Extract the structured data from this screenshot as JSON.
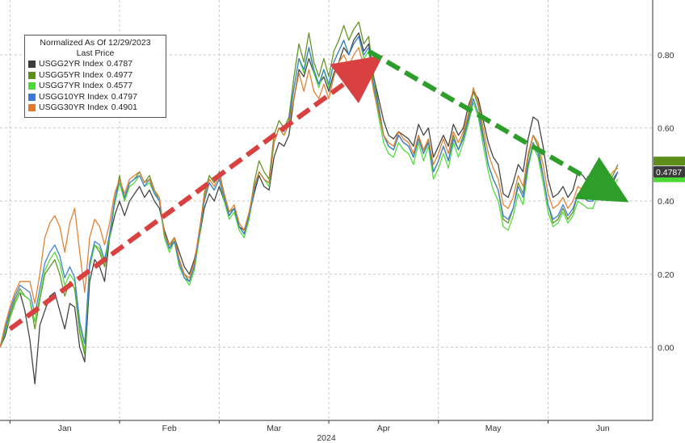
{
  "chart_data": {
    "type": "line",
    "legend": {
      "title_line1": "Normalized As Of 12/29/2023",
      "title_line2": "Last Price",
      "placement": "top-left"
    },
    "x_axis": {
      "tick_labels": [
        "Jan",
        "Feb",
        "Mar",
        "Apr",
        "May",
        "Jun"
      ],
      "year_label": "2024"
    },
    "y_axis": {
      "side": "right",
      "ylim": [
        -0.2,
        0.95
      ],
      "ticks": [
        0.0,
        0.2,
        0.4,
        0.6,
        0.8
      ],
      "tick_labels": [
        "0.00",
        "0.20",
        "0.40",
        "0.60",
        "0.80"
      ]
    },
    "grid": "dashed",
    "last_price_label": "0.4787",
    "x": [
      0,
      1,
      2,
      3,
      4,
      5,
      6,
      7,
      8,
      9,
      10,
      11,
      12,
      13,
      14,
      15,
      16,
      17,
      18,
      19,
      20,
      21,
      22,
      23,
      24,
      25,
      26,
      27,
      28,
      29,
      30,
      31,
      32,
      33,
      34,
      35,
      36,
      37,
      38,
      39,
      40,
      41,
      42,
      43,
      44,
      45,
      46,
      47,
      48,
      49,
      50,
      51,
      52,
      53,
      54,
      55,
      56,
      57,
      58,
      59,
      60,
      61,
      62,
      63,
      64,
      65,
      66,
      67,
      68,
      69,
      70,
      71,
      72,
      73,
      74,
      75,
      76,
      77,
      78,
      79,
      80,
      81,
      82,
      83,
      84,
      85,
      86,
      87,
      88,
      89,
      90,
      91,
      92,
      93,
      94,
      95,
      96,
      97,
      98,
      99,
      100,
      101,
      102,
      103,
      104,
      105,
      106,
      107,
      108,
      109,
      110,
      111,
      112,
      113,
      114,
      115,
      116,
      117,
      118,
      119,
      120,
      121,
      122,
      123,
      124
    ],
    "series": [
      {
        "name": "USGG2YR Index",
        "last": "0.4787",
        "color": "#3b3b3b",
        "values": [
          0.0,
          0.03,
          0.08,
          0.12,
          0.15,
          0.1,
          0.02,
          -0.1,
          0.06,
          0.1,
          0.14,
          0.15,
          0.1,
          0.05,
          0.12,
          0.11,
          0.0,
          -0.04,
          0.18,
          0.24,
          0.22,
          0.18,
          0.3,
          0.36,
          0.4,
          0.36,
          0.4,
          0.42,
          0.44,
          0.41,
          0.43,
          0.4,
          0.38,
          0.32,
          0.28,
          0.3,
          0.26,
          0.22,
          0.2,
          0.24,
          0.3,
          0.38,
          0.42,
          0.4,
          0.44,
          0.4,
          0.36,
          0.38,
          0.33,
          0.32,
          0.36,
          0.42,
          0.47,
          0.44,
          0.43,
          0.52,
          0.56,
          0.55,
          0.58,
          0.68,
          0.76,
          0.74,
          0.79,
          0.75,
          0.72,
          0.74,
          0.7,
          0.75,
          0.78,
          0.82,
          0.8,
          0.84,
          0.86,
          0.81,
          0.83,
          0.74,
          0.68,
          0.62,
          0.58,
          0.57,
          0.59,
          0.58,
          0.57,
          0.55,
          0.61,
          0.58,
          0.6,
          0.52,
          0.55,
          0.58,
          0.55,
          0.61,
          0.58,
          0.6,
          0.66,
          0.7,
          0.68,
          0.62,
          0.56,
          0.52,
          0.5,
          0.42,
          0.41,
          0.45,
          0.5,
          0.48,
          0.57,
          0.63,
          0.62,
          0.55,
          0.46,
          0.41,
          0.42,
          0.44,
          0.41,
          0.43,
          0.48,
          0.47,
          0.45,
          0.44,
          0.46,
          0.43,
          0.42,
          0.45,
          0.48
        ]
      },
      {
        "name": "USGG5YR Index",
        "last": "0.4977",
        "color": "#5e8e1a",
        "values": [
          0.0,
          0.04,
          0.09,
          0.13,
          0.16,
          0.14,
          0.13,
          0.05,
          0.13,
          0.2,
          0.22,
          0.24,
          0.2,
          0.14,
          0.18,
          0.16,
          0.04,
          -0.02,
          0.22,
          0.28,
          0.26,
          0.22,
          0.3,
          0.4,
          0.47,
          0.4,
          0.45,
          0.46,
          0.48,
          0.45,
          0.47,
          0.43,
          0.4,
          0.31,
          0.27,
          0.3,
          0.24,
          0.2,
          0.18,
          0.22,
          0.31,
          0.42,
          0.47,
          0.45,
          0.48,
          0.42,
          0.37,
          0.38,
          0.33,
          0.31,
          0.36,
          0.45,
          0.51,
          0.48,
          0.46,
          0.58,
          0.62,
          0.6,
          0.63,
          0.74,
          0.83,
          0.78,
          0.86,
          0.78,
          0.74,
          0.79,
          0.74,
          0.81,
          0.84,
          0.88,
          0.84,
          0.87,
          0.89,
          0.83,
          0.85,
          0.74,
          0.66,
          0.58,
          0.55,
          0.54,
          0.58,
          0.56,
          0.55,
          0.52,
          0.58,
          0.53,
          0.57,
          0.48,
          0.51,
          0.55,
          0.51,
          0.58,
          0.54,
          0.58,
          0.63,
          0.7,
          0.66,
          0.58,
          0.5,
          0.46,
          0.43,
          0.35,
          0.34,
          0.38,
          0.45,
          0.42,
          0.52,
          0.58,
          0.55,
          0.47,
          0.39,
          0.34,
          0.35,
          0.38,
          0.35,
          0.37,
          0.42,
          0.41,
          0.4,
          0.4,
          0.45,
          0.43,
          0.44,
          0.47,
          0.5
        ]
      },
      {
        "name": "USGG7YR Index",
        "last": "0.4577",
        "color": "#4cd933",
        "values": [
          0.0,
          0.04,
          0.08,
          0.12,
          0.15,
          0.14,
          0.13,
          0.07,
          0.14,
          0.21,
          0.24,
          0.26,
          0.23,
          0.17,
          0.2,
          0.18,
          0.06,
          -0.01,
          0.22,
          0.28,
          0.27,
          0.23,
          0.3,
          0.39,
          0.45,
          0.4,
          0.44,
          0.45,
          0.47,
          0.44,
          0.45,
          0.42,
          0.4,
          0.3,
          0.26,
          0.29,
          0.22,
          0.19,
          0.17,
          0.21,
          0.3,
          0.4,
          0.45,
          0.43,
          0.46,
          0.4,
          0.35,
          0.37,
          0.32,
          0.3,
          0.35,
          0.43,
          0.48,
          0.46,
          0.44,
          0.56,
          0.6,
          0.58,
          0.61,
          0.71,
          0.79,
          0.75,
          0.82,
          0.75,
          0.71,
          0.76,
          0.71,
          0.78,
          0.81,
          0.84,
          0.8,
          0.83,
          0.85,
          0.79,
          0.81,
          0.71,
          0.63,
          0.56,
          0.53,
          0.52,
          0.56,
          0.54,
          0.53,
          0.5,
          0.56,
          0.51,
          0.55,
          0.46,
          0.49,
          0.53,
          0.49,
          0.56,
          0.52,
          0.56,
          0.61,
          0.67,
          0.63,
          0.55,
          0.48,
          0.43,
          0.4,
          0.33,
          0.32,
          0.36,
          0.42,
          0.39,
          0.49,
          0.55,
          0.52,
          0.45,
          0.37,
          0.33,
          0.34,
          0.37,
          0.34,
          0.36,
          0.4,
          0.39,
          0.38,
          0.38,
          0.42,
          0.41,
          0.42,
          0.44,
          0.46
        ]
      },
      {
        "name": "USGG10YR Index",
        "last": "0.4797",
        "color": "#3a7bd5",
        "values": [
          0.0,
          0.05,
          0.1,
          0.14,
          0.17,
          0.16,
          0.15,
          0.09,
          0.16,
          0.23,
          0.26,
          0.28,
          0.25,
          0.19,
          0.22,
          0.19,
          0.07,
          0.01,
          0.23,
          0.29,
          0.28,
          0.24,
          0.31,
          0.4,
          0.46,
          0.41,
          0.45,
          0.46,
          0.47,
          0.44,
          0.46,
          0.42,
          0.4,
          0.31,
          0.27,
          0.29,
          0.23,
          0.19,
          0.18,
          0.22,
          0.31,
          0.4,
          0.45,
          0.43,
          0.46,
          0.41,
          0.36,
          0.38,
          0.33,
          0.31,
          0.36,
          0.43,
          0.48,
          0.46,
          0.45,
          0.56,
          0.6,
          0.59,
          0.62,
          0.71,
          0.79,
          0.76,
          0.82,
          0.76,
          0.72,
          0.76,
          0.72,
          0.78,
          0.81,
          0.84,
          0.8,
          0.83,
          0.85,
          0.8,
          0.82,
          0.72,
          0.65,
          0.58,
          0.55,
          0.54,
          0.58,
          0.56,
          0.55,
          0.52,
          0.57,
          0.53,
          0.56,
          0.48,
          0.51,
          0.55,
          0.51,
          0.57,
          0.54,
          0.57,
          0.62,
          0.68,
          0.64,
          0.57,
          0.5,
          0.46,
          0.43,
          0.36,
          0.35,
          0.38,
          0.44,
          0.41,
          0.5,
          0.56,
          0.53,
          0.47,
          0.39,
          0.35,
          0.36,
          0.39,
          0.36,
          0.38,
          0.42,
          0.41,
          0.4,
          0.4,
          0.44,
          0.43,
          0.44,
          0.46,
          0.48
        ]
      },
      {
        "name": "USGG30YR Index",
        "last": "0.4901",
        "color": "#e07b2a",
        "values": [
          0.0,
          0.06,
          0.11,
          0.15,
          0.18,
          0.18,
          0.18,
          0.12,
          0.2,
          0.3,
          0.34,
          0.36,
          0.33,
          0.26,
          0.34,
          0.38,
          0.26,
          0.15,
          0.3,
          0.35,
          0.33,
          0.28,
          0.34,
          0.42,
          0.46,
          0.42,
          0.46,
          0.47,
          0.48,
          0.45,
          0.46,
          0.43,
          0.41,
          0.31,
          0.28,
          0.3,
          0.24,
          0.2,
          0.19,
          0.23,
          0.32,
          0.41,
          0.46,
          0.44,
          0.47,
          0.42,
          0.37,
          0.39,
          0.34,
          0.32,
          0.37,
          0.44,
          0.48,
          0.46,
          0.45,
          0.56,
          0.6,
          0.58,
          0.61,
          0.68,
          0.75,
          0.7,
          0.76,
          0.7,
          0.68,
          0.72,
          0.68,
          0.74,
          0.78,
          0.8,
          0.77,
          0.8,
          0.82,
          0.77,
          0.78,
          0.7,
          0.64,
          0.58,
          0.56,
          0.55,
          0.59,
          0.57,
          0.56,
          0.53,
          0.58,
          0.54,
          0.57,
          0.5,
          0.53,
          0.57,
          0.53,
          0.59,
          0.56,
          0.59,
          0.64,
          0.71,
          0.67,
          0.6,
          0.53,
          0.49,
          0.46,
          0.39,
          0.38,
          0.41,
          0.47,
          0.44,
          0.53,
          0.58,
          0.56,
          0.5,
          0.42,
          0.38,
          0.39,
          0.41,
          0.38,
          0.4,
          0.44,
          0.43,
          0.42,
          0.42,
          0.46,
          0.45,
          0.46,
          0.48,
          0.49
        ]
      }
    ],
    "annotations": [
      {
        "kind": "dashed-arrow",
        "color": "#d94040",
        "from": [
          2,
          0.05
        ],
        "to": [
          73,
          0.76
        ]
      },
      {
        "kind": "dashed-arrow",
        "color": "#2e9e2a",
        "from": [
          74,
          0.81
        ],
        "to": [
          122,
          0.43
        ]
      }
    ]
  }
}
